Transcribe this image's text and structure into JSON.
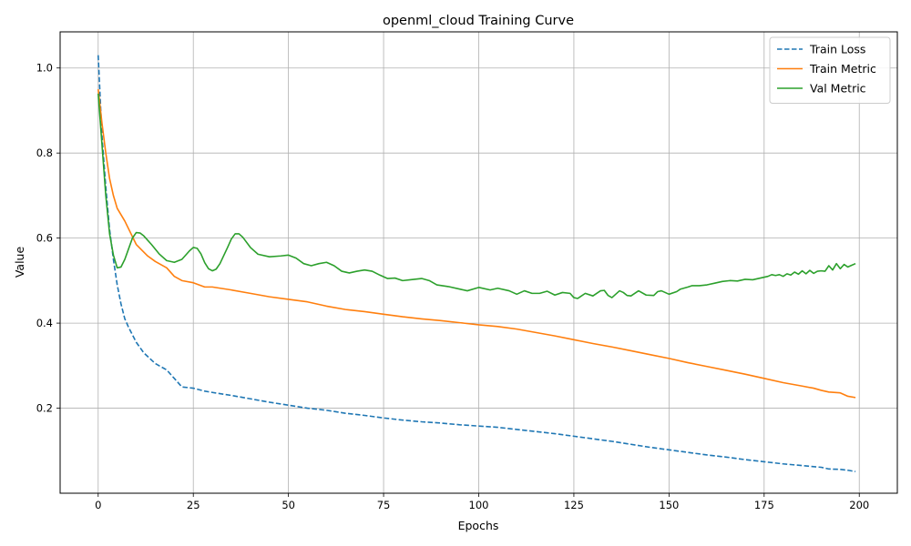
{
  "chart_data": {
    "type": "line",
    "title": "openml_cloud Training Curve",
    "xlabel": "Epochs",
    "ylabel": "Value",
    "xlim": [
      -10,
      210
    ],
    "ylim": [
      0.0,
      1.085
    ],
    "xticks": [
      0,
      25,
      50,
      75,
      100,
      125,
      150,
      175,
      200
    ],
    "yticks": [
      0.2,
      0.4,
      0.6,
      0.8,
      1.0
    ],
    "ytick_labels": [
      "0.2",
      "0.4",
      "0.6",
      "0.8",
      "1.0"
    ],
    "grid": true,
    "legend_position": "top-right",
    "series": [
      {
        "name": "Train Loss",
        "color": "#1f77b4",
        "dash": "dashed",
        "points": [
          [
            0,
            1.03
          ],
          [
            1,
            0.84
          ],
          [
            2,
            0.72
          ],
          [
            3,
            0.62
          ],
          [
            4,
            0.55
          ],
          [
            5,
            0.49
          ],
          [
            6,
            0.445
          ],
          [
            7,
            0.41
          ],
          [
            8,
            0.39
          ],
          [
            10,
            0.355
          ],
          [
            12,
            0.33
          ],
          [
            15,
            0.305
          ],
          [
            18,
            0.29
          ],
          [
            20,
            0.27
          ],
          [
            22,
            0.25
          ],
          [
            25,
            0.247
          ],
          [
            28,
            0.24
          ],
          [
            30,
            0.237
          ],
          [
            35,
            0.23
          ],
          [
            40,
            0.222
          ],
          [
            45,
            0.214
          ],
          [
            50,
            0.207
          ],
          [
            55,
            0.2
          ],
          [
            60,
            0.195
          ],
          [
            65,
            0.188
          ],
          [
            70,
            0.183
          ],
          [
            75,
            0.177
          ],
          [
            80,
            0.172
          ],
          [
            85,
            0.168
          ],
          [
            90,
            0.165
          ],
          [
            95,
            0.161
          ],
          [
            100,
            0.158
          ],
          [
            105,
            0.155
          ],
          [
            110,
            0.15
          ],
          [
            115,
            0.145
          ],
          [
            120,
            0.14
          ],
          [
            125,
            0.134
          ],
          [
            130,
            0.128
          ],
          [
            135,
            0.122
          ],
          [
            140,
            0.115
          ],
          [
            145,
            0.108
          ],
          [
            150,
            0.102
          ],
          [
            155,
            0.096
          ],
          [
            160,
            0.09
          ],
          [
            165,
            0.085
          ],
          [
            170,
            0.079
          ],
          [
            175,
            0.074
          ],
          [
            180,
            0.069
          ],
          [
            185,
            0.065
          ],
          [
            190,
            0.061
          ],
          [
            192,
            0.057
          ],
          [
            195,
            0.056
          ],
          [
            197,
            0.054
          ],
          [
            199,
            0.051
          ]
        ]
      },
      {
        "name": "Train Metric",
        "color": "#ff7f0e",
        "dash": "solid",
        "points": [
          [
            0,
            0.95
          ],
          [
            1,
            0.87
          ],
          [
            2,
            0.8
          ],
          [
            3,
            0.74
          ],
          [
            4,
            0.7
          ],
          [
            5,
            0.67
          ],
          [
            7,
            0.64
          ],
          [
            10,
            0.585
          ],
          [
            13,
            0.558
          ],
          [
            15,
            0.545
          ],
          [
            18,
            0.53
          ],
          [
            20,
            0.51
          ],
          [
            22,
            0.5
          ],
          [
            25,
            0.495
          ],
          [
            28,
            0.485
          ],
          [
            30,
            0.485
          ],
          [
            35,
            0.478
          ],
          [
            40,
            0.47
          ],
          [
            45,
            0.462
          ],
          [
            50,
            0.456
          ],
          [
            55,
            0.45
          ],
          [
            60,
            0.44
          ],
          [
            65,
            0.432
          ],
          [
            70,
            0.427
          ],
          [
            75,
            0.421
          ],
          [
            80,
            0.415
          ],
          [
            85,
            0.41
          ],
          [
            90,
            0.406
          ],
          [
            95,
            0.401
          ],
          [
            100,
            0.396
          ],
          [
            105,
            0.392
          ],
          [
            110,
            0.386
          ],
          [
            115,
            0.378
          ],
          [
            120,
            0.37
          ],
          [
            125,
            0.361
          ],
          [
            130,
            0.352
          ],
          [
            135,
            0.344
          ],
          [
            140,
            0.335
          ],
          [
            145,
            0.326
          ],
          [
            150,
            0.317
          ],
          [
            155,
            0.307
          ],
          [
            160,
            0.298
          ],
          [
            165,
            0.289
          ],
          [
            170,
            0.28
          ],
          [
            175,
            0.27
          ],
          [
            180,
            0.26
          ],
          [
            185,
            0.252
          ],
          [
            188,
            0.247
          ],
          [
            190,
            0.242
          ],
          [
            192,
            0.238
          ],
          [
            195,
            0.236
          ],
          [
            197,
            0.228
          ],
          [
            199,
            0.225
          ]
        ]
      },
      {
        "name": "Val Metric",
        "color": "#2ca02c",
        "dash": "solid",
        "points": [
          [
            0,
            0.94
          ],
          [
            1,
            0.82
          ],
          [
            2,
            0.7
          ],
          [
            3,
            0.61
          ],
          [
            4,
            0.56
          ],
          [
            5,
            0.53
          ],
          [
            6,
            0.532
          ],
          [
            7,
            0.55
          ],
          [
            8,
            0.575
          ],
          [
            9,
            0.6
          ],
          [
            10,
            0.613
          ],
          [
            11,
            0.612
          ],
          [
            12,
            0.605
          ],
          [
            14,
            0.585
          ],
          [
            16,
            0.563
          ],
          [
            18,
            0.547
          ],
          [
            20,
            0.543
          ],
          [
            22,
            0.55
          ],
          [
            24,
            0.57
          ],
          [
            25,
            0.578
          ],
          [
            26,
            0.576
          ],
          [
            27,
            0.563
          ],
          [
            28,
            0.542
          ],
          [
            29,
            0.528
          ],
          [
            30,
            0.523
          ],
          [
            31,
            0.527
          ],
          [
            32,
            0.54
          ],
          [
            34,
            0.578
          ],
          [
            35,
            0.598
          ],
          [
            36,
            0.61
          ],
          [
            37,
            0.61
          ],
          [
            38,
            0.602
          ],
          [
            40,
            0.578
          ],
          [
            42,
            0.562
          ],
          [
            45,
            0.556
          ],
          [
            48,
            0.558
          ],
          [
            50,
            0.56
          ],
          [
            52,
            0.553
          ],
          [
            54,
            0.54
          ],
          [
            56,
            0.535
          ],
          [
            58,
            0.54
          ],
          [
            60,
            0.543
          ],
          [
            62,
            0.535
          ],
          [
            64,
            0.522
          ],
          [
            66,
            0.518
          ],
          [
            68,
            0.522
          ],
          [
            70,
            0.525
          ],
          [
            72,
            0.522
          ],
          [
            74,
            0.513
          ],
          [
            76,
            0.505
          ],
          [
            78,
            0.506
          ],
          [
            80,
            0.5
          ],
          [
            82,
            0.502
          ],
          [
            85,
            0.505
          ],
          [
            87,
            0.5
          ],
          [
            89,
            0.49
          ],
          [
            92,
            0.486
          ],
          [
            95,
            0.48
          ],
          [
            97,
            0.476
          ],
          [
            100,
            0.484
          ],
          [
            103,
            0.478
          ],
          [
            105,
            0.482
          ],
          [
            108,
            0.476
          ],
          [
            110,
            0.468
          ],
          [
            112,
            0.476
          ],
          [
            114,
            0.47
          ],
          [
            116,
            0.47
          ],
          [
            118,
            0.475
          ],
          [
            120,
            0.466
          ],
          [
            122,
            0.472
          ],
          [
            124,
            0.47
          ],
          [
            125,
            0.46
          ],
          [
            126,
            0.458
          ],
          [
            128,
            0.47
          ],
          [
            130,
            0.464
          ],
          [
            132,
            0.476
          ],
          [
            133,
            0.477
          ],
          [
            134,
            0.465
          ],
          [
            135,
            0.46
          ],
          [
            137,
            0.476
          ],
          [
            138,
            0.472
          ],
          [
            139,
            0.465
          ],
          [
            140,
            0.464
          ],
          [
            142,
            0.476
          ],
          [
            144,
            0.466
          ],
          [
            146,
            0.465
          ],
          [
            147,
            0.474
          ],
          [
            148,
            0.476
          ],
          [
            150,
            0.468
          ],
          [
            152,
            0.474
          ],
          [
            153,
            0.48
          ],
          [
            155,
            0.485
          ],
          [
            156,
            0.488
          ],
          [
            158,
            0.488
          ],
          [
            160,
            0.49
          ],
          [
            162,
            0.494
          ],
          [
            164,
            0.498
          ],
          [
            166,
            0.5
          ],
          [
            168,
            0.499
          ],
          [
            170,
            0.503
          ],
          [
            172,
            0.502
          ],
          [
            174,
            0.506
          ],
          [
            176,
            0.51
          ],
          [
            177,
            0.514
          ],
          [
            178,
            0.512
          ],
          [
            179,
            0.514
          ],
          [
            180,
            0.51
          ],
          [
            181,
            0.516
          ],
          [
            182,
            0.513
          ],
          [
            183,
            0.52
          ],
          [
            184,
            0.515
          ],
          [
            185,
            0.523
          ],
          [
            186,
            0.516
          ],
          [
            187,
            0.524
          ],
          [
            188,
            0.517
          ],
          [
            189,
            0.522
          ],
          [
            190,
            0.523
          ],
          [
            191,
            0.522
          ],
          [
            192,
            0.535
          ],
          [
            193,
            0.525
          ],
          [
            194,
            0.54
          ],
          [
            195,
            0.528
          ],
          [
            196,
            0.538
          ],
          [
            197,
            0.532
          ],
          [
            198,
            0.536
          ],
          [
            199,
            0.54
          ]
        ]
      }
    ]
  }
}
